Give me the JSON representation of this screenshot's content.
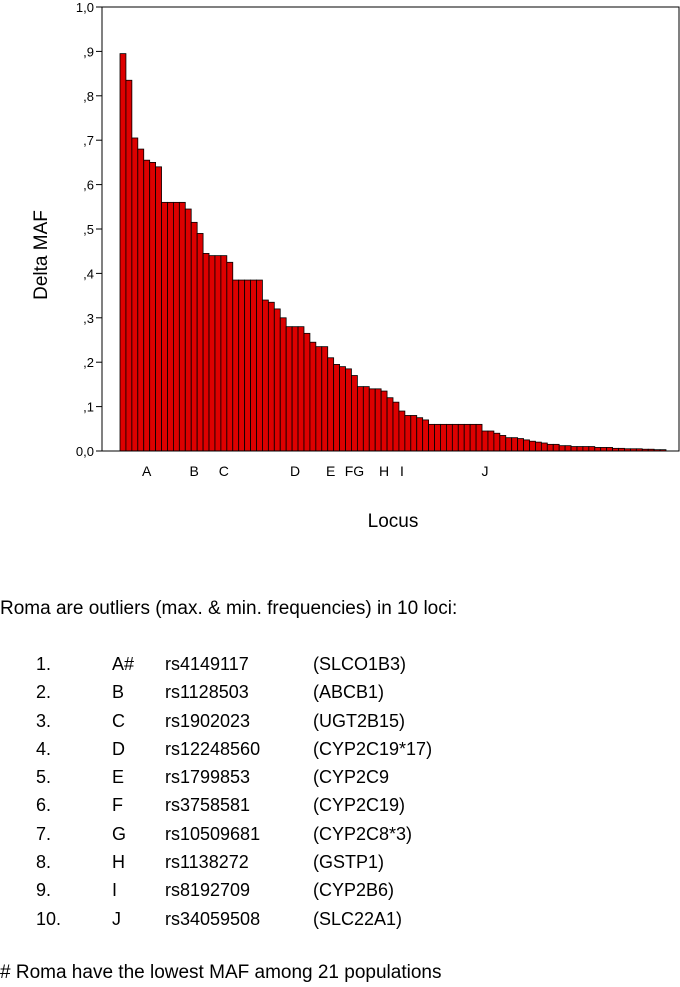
{
  "chart_data": {
    "type": "bar",
    "xlabel": "Locus",
    "ylabel": "Delta MAF",
    "ylim": [
      0,
      1.0
    ],
    "yticks": [
      {
        "value": 0.0,
        "label": "0,0"
      },
      {
        "value": 0.1,
        "label": ",1"
      },
      {
        "value": 0.2,
        "label": ",2"
      },
      {
        "value": 0.3,
        "label": ",3"
      },
      {
        "value": 0.4,
        "label": ",4"
      },
      {
        "value": 0.5,
        "label": ",5"
      },
      {
        "value": 0.6,
        "label": ",6"
      },
      {
        "value": 0.7,
        "label": ",7"
      },
      {
        "value": 0.8,
        "label": ",8"
      },
      {
        "value": 0.9,
        "label": ",9"
      },
      {
        "value": 1.0,
        "label": "1,0"
      }
    ],
    "bar_color": "#dd0000",
    "grid": false,
    "values": [
      0.895,
      0.835,
      0.705,
      0.68,
      0.655,
      0.65,
      0.64,
      0.56,
      0.56,
      0.56,
      0.56,
      0.545,
      0.515,
      0.49,
      0.445,
      0.44,
      0.44,
      0.44,
      0.425,
      0.385,
      0.385,
      0.385,
      0.385,
      0.385,
      0.34,
      0.335,
      0.32,
      0.3,
      0.28,
      0.28,
      0.28,
      0.265,
      0.245,
      0.235,
      0.235,
      0.21,
      0.195,
      0.19,
      0.185,
      0.17,
      0.145,
      0.145,
      0.14,
      0.14,
      0.135,
      0.12,
      0.11,
      0.09,
      0.08,
      0.08,
      0.075,
      0.07,
      0.06,
      0.06,
      0.06,
      0.06,
      0.06,
      0.06,
      0.06,
      0.06,
      0.06,
      0.045,
      0.045,
      0.04,
      0.035,
      0.03,
      0.03,
      0.028,
      0.025,
      0.022,
      0.02,
      0.018,
      0.015,
      0.015,
      0.012,
      0.012,
      0.01,
      0.01,
      0.01,
      0.01,
      0.008,
      0.008,
      0.008,
      0.006,
      0.006,
      0.005,
      0.005,
      0.005,
      0.004,
      0.004,
      0.003,
      0.003
    ],
    "locus_labels": [
      {
        "label": "A",
        "bar_index": 4
      },
      {
        "label": "B",
        "bar_index": 12
      },
      {
        "label": "C",
        "bar_index": 17
      },
      {
        "label": "D",
        "bar_index": 29
      },
      {
        "label": "E",
        "bar_index": 35
      },
      {
        "label": "FG",
        "bar_index": 39
      },
      {
        "label": "H",
        "bar_index": 44
      },
      {
        "label": "I",
        "bar_index": 47
      },
      {
        "label": "J",
        "bar_index": 61
      }
    ]
  },
  "caption": "Roma are outliers (max. & min. frequencies) in 10 loci:",
  "loci": [
    {
      "num": "1.",
      "letter": "A#",
      "rs": "rs4149117",
      "gene": "(SLCO1B3)"
    },
    {
      "num": "2.",
      "letter": "B",
      "rs": "rs1128503",
      "gene": "(ABCB1)"
    },
    {
      "num": "3.",
      "letter": "C",
      "rs": "rs1902023",
      "gene": "(UGT2B15)"
    },
    {
      "num": "4.",
      "letter": "D",
      "rs": "rs12248560",
      "gene": "(CYP2C19*17)"
    },
    {
      "num": "5.",
      "letter": "E",
      "rs": "rs1799853",
      "gene": "(CYP2C9"
    },
    {
      "num": "6.",
      "letter": "F",
      "rs": "rs3758581",
      "gene": "(CYP2C19)"
    },
    {
      "num": "7.",
      "letter": "G",
      "rs": "rs10509681",
      "gene": "(CYP2C8*3)"
    },
    {
      "num": "8.",
      "letter": "H",
      "rs": "rs1138272",
      "gene": "(GSTP1)"
    },
    {
      "num": "9.",
      "letter": "I",
      "rs": "rs8192709",
      "gene": "(CYP2B6)"
    },
    {
      "num": "10.",
      "letter": "J",
      "rs": "rs34059508",
      "gene": "(SLC22A1)"
    }
  ],
  "footnote": "# Roma have the lowest MAF among 21 populations"
}
